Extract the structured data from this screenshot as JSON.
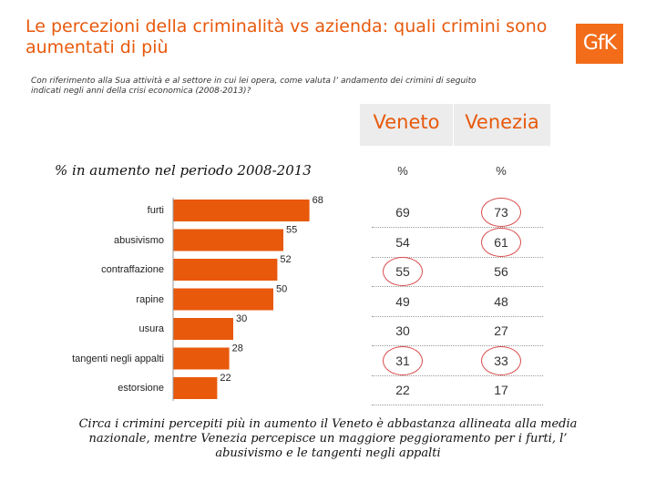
{
  "title": "Le percezioni della criminalità vs azienda: quali crimini sono aumentati di più",
  "logo_text": "GfK",
  "question": "Con riferimento alla Sua attività e al settore in cui lei opera, come valuta l’ andamento dei crimini di seguito indicati negli anni della crisi economica (2008-2013)?",
  "columns": {
    "veneto": "Veneto",
    "venezia": "Venezia",
    "unit_veneto": "%",
    "unit_venezia": "%"
  },
  "chart_data": {
    "type": "bar",
    "orientation": "horizontal",
    "title": "% in aumento nel periodo 2008-2013",
    "categories": [
      "furti",
      "abusivismo",
      "contraffazione",
      "rapine",
      "usura",
      "tangenti negli appalti",
      "estorsione"
    ],
    "values": [
      68,
      55,
      52,
      50,
      30,
      28,
      22
    ],
    "bar_color": "#e8590c",
    "table": {
      "veneto": [
        69,
        54,
        55,
        49,
        30,
        31,
        22
      ],
      "venezia": [
        73,
        61,
        56,
        48,
        27,
        33,
        17
      ],
      "highlighted_veneto": [
        false,
        false,
        true,
        false,
        false,
        true,
        false
      ],
      "highlighted_venezia": [
        true,
        true,
        false,
        false,
        false,
        true,
        false
      ]
    }
  },
  "note": "Circa i crimini percepiti più in aumento il Veneto è abbastanza allineata alla media nazionale, mentre Venezia percepisce un maggiore peggioramento per i furti, l’ abusivismo e le tangenti negli appalti"
}
